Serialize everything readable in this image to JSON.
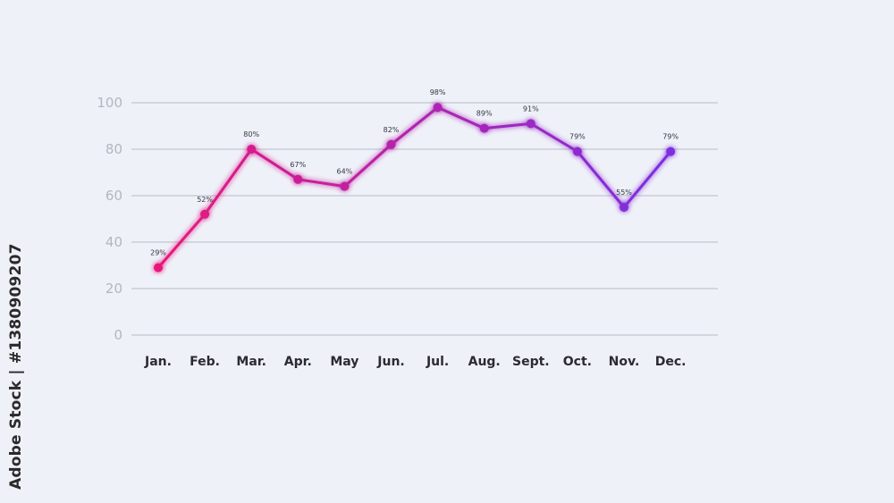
{
  "chart_data": {
    "type": "line",
    "categories": [
      "Jan.",
      "Feb.",
      "Mar.",
      "Apr.",
      "May",
      "Jun.",
      "Jul.",
      "Aug.",
      "Sept.",
      "Oct.",
      "Nov.",
      "Dec."
    ],
    "values": [
      29,
      52,
      80,
      67,
      64,
      82,
      98,
      89,
      91,
      79,
      55,
      79
    ],
    "data_labels": [
      "29%",
      "52%",
      "80%",
      "67%",
      "64%",
      "82%",
      "98%",
      "89%",
      "91%",
      "79%",
      "55%",
      "79%"
    ],
    "ylim": [
      0,
      100
    ],
    "yticks": [
      "0",
      "20",
      "40",
      "60",
      "80",
      "100"
    ],
    "grid": true,
    "line_gradient": [
      "#e8197a",
      "#7b2fe0"
    ]
  },
  "watermark": {
    "side_text": "Adobe Stock | #1380909207"
  }
}
